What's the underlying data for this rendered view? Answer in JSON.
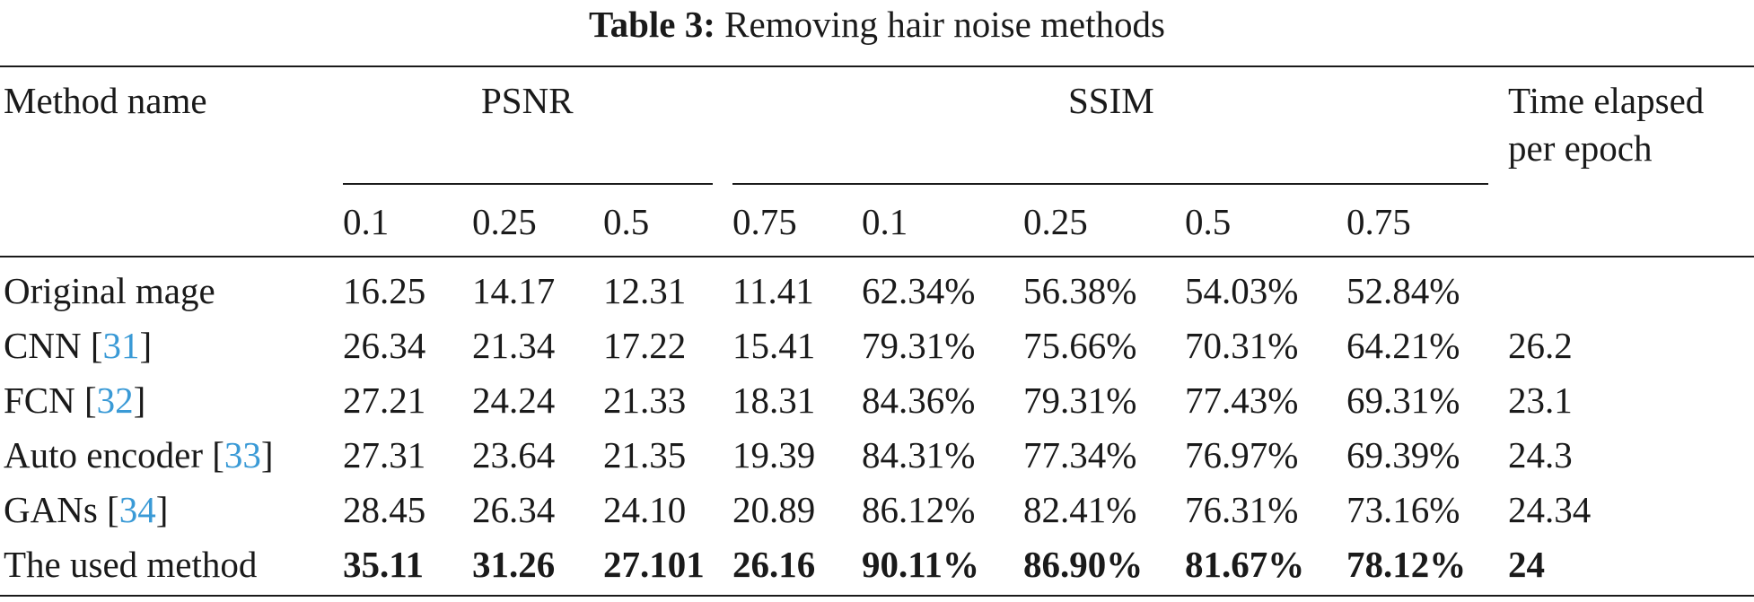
{
  "caption": {
    "label": "Table 3:",
    "text": "Removing hair noise methods"
  },
  "header": {
    "method": "Method name",
    "psnr": "PSNR",
    "ssim": "SSIM",
    "time_line1": "Time elapsed",
    "time_line2": "per epoch",
    "subcols": [
      "0.1",
      "0.25",
      "0.5",
      "0.75",
      "0.1",
      "0.25",
      "0.5",
      "0.75"
    ]
  },
  "rows": [
    {
      "name": "Original mage",
      "ref": "",
      "suffix": "",
      "values": [
        "16.25",
        "14.17",
        "12.31",
        "11.41",
        "62.34%",
        "56.38%",
        "54.03%",
        "52.84%"
      ],
      "time": "",
      "bold": false
    },
    {
      "name": "CNN [",
      "ref": "31",
      "suffix": "]",
      "values": [
        "26.34",
        "21.34",
        "17.22",
        "15.41",
        "79.31%",
        "75.66%",
        "70.31%",
        "64.21%"
      ],
      "time": "26.2",
      "bold": false
    },
    {
      "name": "FCN [",
      "ref": "32",
      "suffix": "]",
      "values": [
        "27.21",
        "24.24",
        "21.33",
        "18.31",
        "84.36%",
        "79.31%",
        "77.43%",
        "69.31%"
      ],
      "time": "23.1",
      "bold": false
    },
    {
      "name": "Auto encoder [",
      "ref": "33",
      "suffix": "]",
      "values": [
        "27.31",
        "23.64",
        "21.35",
        "19.39",
        "84.31%",
        "77.34%",
        "76.97%",
        "69.39%"
      ],
      "time": "24.3",
      "bold": false
    },
    {
      "name": "GANs [",
      "ref": "34",
      "suffix": "]",
      "values": [
        "28.45",
        "26.34",
        "24.10",
        "20.89",
        "86.12%",
        "82.41%",
        "76.31%",
        "73.16%"
      ],
      "time": "24.34",
      "bold": false
    },
    {
      "name": "The used method",
      "ref": "",
      "suffix": "",
      "values": [
        "35.11",
        "31.26",
        "27.101",
        "26.16",
        "90.11%",
        "86.90%",
        "81.67%",
        "78.12%"
      ],
      "time": "24",
      "bold": true
    }
  ]
}
